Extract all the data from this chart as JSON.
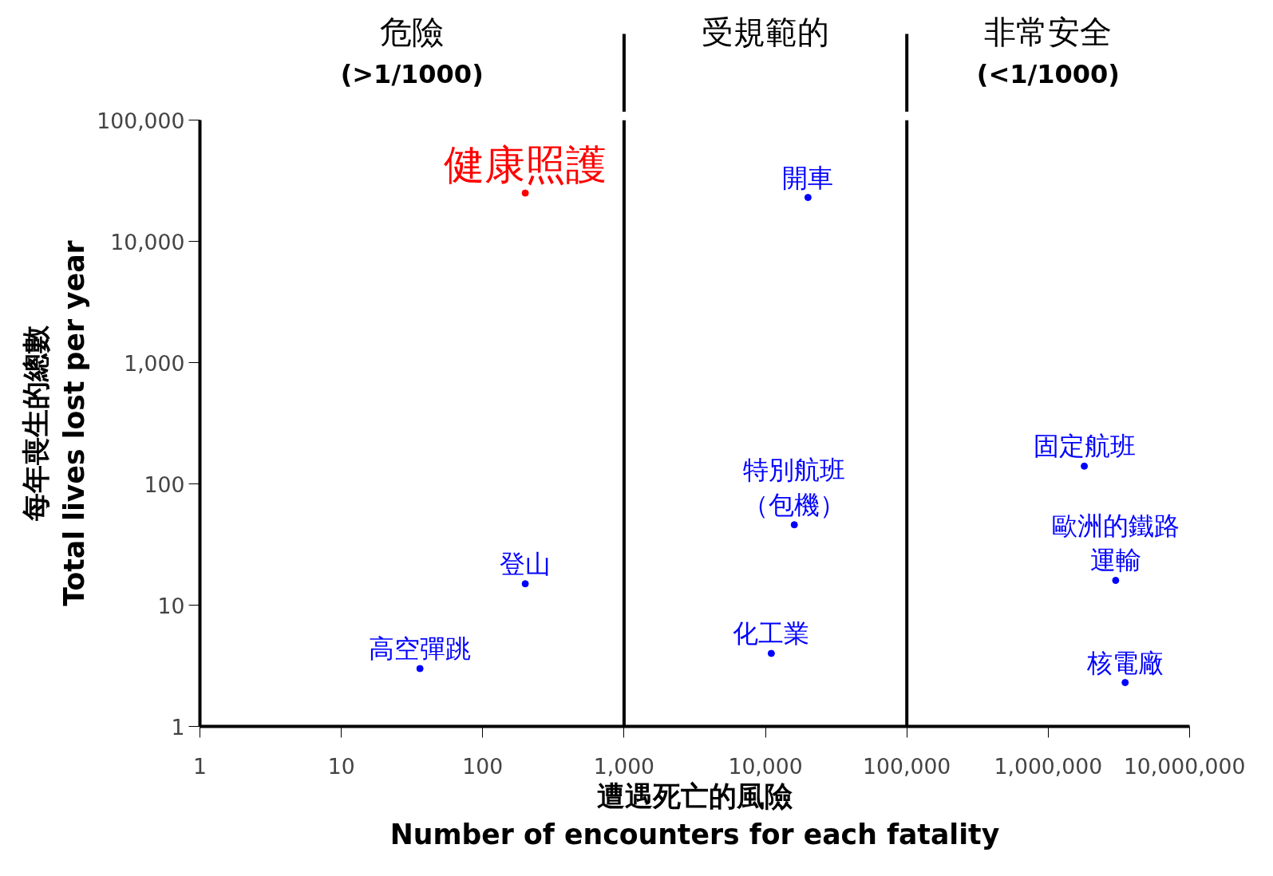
{
  "chart_data": {
    "type": "scatter",
    "marker": "circle",
    "log": "xy",
    "grid": false,
    "xlabel": "遭遇死亡的風險\nNumber of encounters for each fatality",
    "ylabel": "每年喪生的總數\nTotal lives lost per year",
    "xlim": [
      1,
      10000000
    ],
    "ylim": [
      1,
      100000
    ],
    "xticks": [
      1,
      10,
      100,
      {
        "value": 1000,
        "label": "1,000"
      },
      {
        "value": 10000,
        "label": "10,000"
      },
      {
        "value": 100000,
        "label": "100,000"
      },
      {
        "value": 1000000,
        "label": "1,000,000"
      },
      {
        "value": 10000000,
        "label": "10,000,000"
      }
    ],
    "yticks": [
      1,
      10,
      100,
      {
        "value": 1000,
        "label": "1,000"
      },
      {
        "value": 10000,
        "label": "10,000"
      },
      {
        "value": 100000,
        "label": "100,000"
      }
    ],
    "series": [
      {
        "name": "健康照護",
        "color": "#ff0000",
        "x": [
          200
        ],
        "values": [
          25000
        ]
      },
      {
        "name": "開車",
        "color": "#0000ff",
        "x": [
          20000
        ],
        "values": [
          23000
        ]
      },
      {
        "name": "固定航班",
        "color": "#0000ff",
        "x": [
          1800000
        ],
        "values": [
          140
        ]
      },
      {
        "name": "特別航班（包機）",
        "color": "#0000ff",
        "x": [
          16000
        ],
        "values": [
          46
        ]
      },
      {
        "name": "歐洲的鐵路運輸",
        "color": "#0000ff",
        "x": [
          3000000
        ],
        "values": [
          16
        ]
      },
      {
        "name": "登山",
        "color": "#0000ff",
        "x": [
          200
        ],
        "values": [
          15
        ]
      },
      {
        "name": "化工業",
        "color": "#0000ff",
        "x": [
          11000
        ],
        "values": [
          4
        ]
      },
      {
        "name": "高空彈跳",
        "color": "#0000ff",
        "x": [
          36
        ],
        "values": [
          3
        ]
      },
      {
        "name": "核電廠",
        "color": "#0000ff",
        "x": [
          3500000
        ],
        "values": [
          2.3
        ]
      }
    ],
    "annotations": [
      "危險\n(>1/1000)",
      "受規範的",
      "非常安全\n(<1/1000)"
    ],
    "ref_lines": [
      {
        "axis": "x",
        "value": 1000,
        "color": "#000000"
      },
      {
        "axis": "x",
        "value": 100000,
        "color": "#000000"
      }
    ]
  }
}
